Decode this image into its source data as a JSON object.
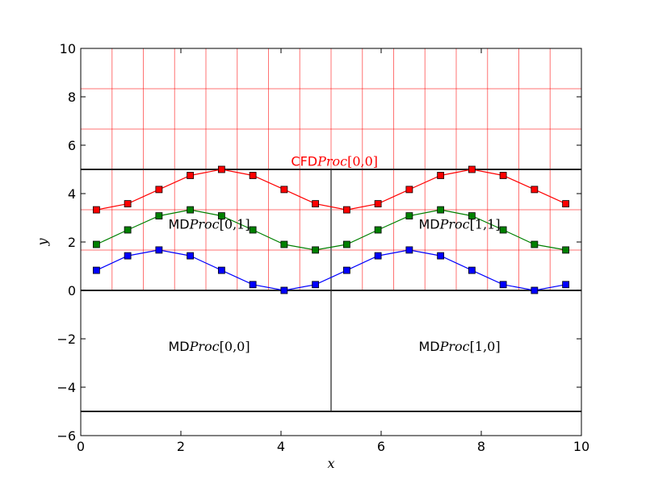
{
  "chart_data": {
    "type": "line",
    "xlabel": "x",
    "ylabel": "y",
    "xlim": [
      0,
      10
    ],
    "ylim": [
      -6,
      10
    ],
    "xticks": [
      "0",
      "2",
      "4",
      "6",
      "8",
      "10"
    ],
    "yticks": [
      "−6",
      "−4",
      "−2",
      "0",
      "2",
      "4",
      "6",
      "8",
      "10"
    ],
    "grid": {
      "color": "#ff0000",
      "vertical_x": [
        0.625,
        1.25,
        1.875,
        2.5,
        3.125,
        3.75,
        4.375,
        5.0,
        5.625,
        6.25,
        6.875,
        7.5,
        8.125,
        8.75,
        9.375
      ],
      "horizontal_y": [
        1.667,
        3.333,
        5.0,
        6.667,
        8.333
      ]
    },
    "domain_lines": {
      "color": "#222222",
      "horizontal_y": [
        5.0,
        0.0,
        -5.0
      ],
      "vertical": {
        "x": 5.0,
        "y_from": -5.0,
        "y_to": 5.0,
        "color": "#777777"
      }
    },
    "series": [
      {
        "color": "#ff0000",
        "x": [
          0.3125,
          0.9375,
          1.5625,
          2.1875,
          2.8125,
          3.4375,
          4.0625,
          4.6875,
          5.3125,
          5.9375,
          6.5625,
          7.1875,
          7.8125,
          8.4375,
          9.0625,
          9.6875
        ],
        "y": [
          3.33,
          3.58,
          4.17,
          4.75,
          5.0,
          4.75,
          4.17,
          3.58,
          3.33,
          3.58,
          4.17,
          4.75,
          5.0,
          4.75,
          4.17,
          3.58
        ]
      },
      {
        "color": "#008000",
        "x": [
          0.3125,
          0.9375,
          1.5625,
          2.1875,
          2.8125,
          3.4375,
          4.0625,
          4.6875,
          5.3125,
          5.9375,
          6.5625,
          7.1875,
          7.8125,
          8.4375,
          9.0625,
          9.6875
        ],
        "y": [
          1.9,
          2.5,
          3.08,
          3.33,
          3.08,
          2.5,
          1.9,
          1.67,
          1.9,
          2.5,
          3.08,
          3.33,
          3.08,
          2.5,
          1.9,
          1.67
        ]
      },
      {
        "color": "#0000ff",
        "x": [
          0.3125,
          0.9375,
          1.5625,
          2.1875,
          2.8125,
          3.4375,
          4.0625,
          4.6875,
          5.3125,
          5.9375,
          6.5625,
          7.1875,
          7.8125,
          8.4375,
          9.0625,
          9.6875
        ],
        "y": [
          0.83,
          1.43,
          1.67,
          1.43,
          0.83,
          0.24,
          0.0,
          0.24,
          0.83,
          1.43,
          1.67,
          1.43,
          0.83,
          0.24,
          0.0,
          0.24
        ]
      }
    ],
    "annotations": [
      {
        "prefix": "CFD",
        "math": "Proc",
        "index": "[0,0]",
        "x": 4.2,
        "y": 5.15,
        "color": "#ff0000"
      },
      {
        "prefix": "MD",
        "math": "Proc",
        "index": "[0,1]",
        "x": 1.75,
        "y": 2.55,
        "color": "#000000"
      },
      {
        "prefix": "MD",
        "math": "Proc",
        "index": "[1,1]",
        "x": 6.75,
        "y": 2.55,
        "color": "#000000"
      },
      {
        "prefix": "MD",
        "math": "Proc",
        "index": "[0,0]",
        "x": 1.75,
        "y": -2.5,
        "color": "#000000"
      },
      {
        "prefix": "MD",
        "math": "Proc",
        "index": "[1,0]",
        "x": 6.75,
        "y": -2.5,
        "color": "#000000"
      }
    ]
  }
}
